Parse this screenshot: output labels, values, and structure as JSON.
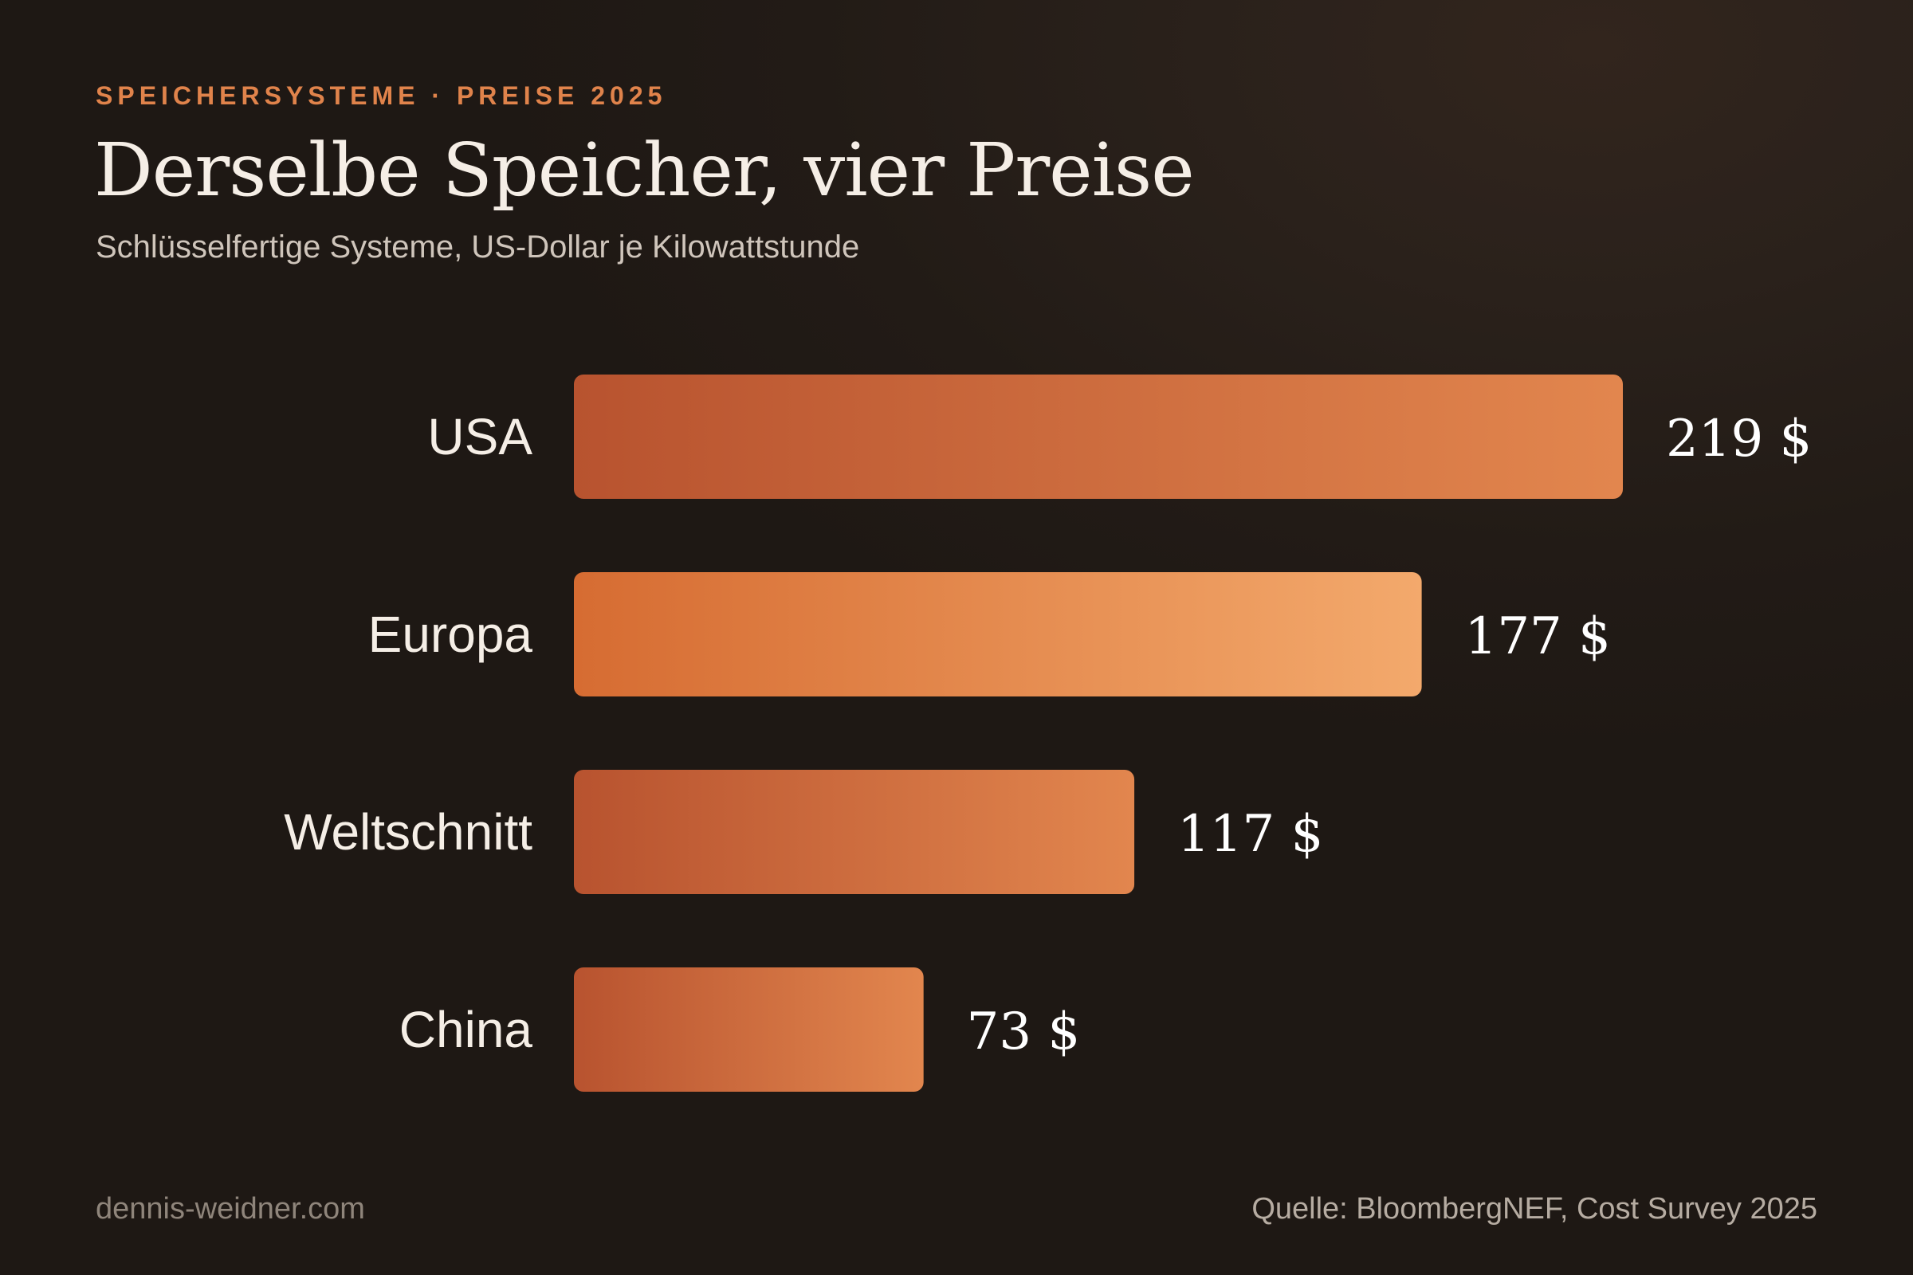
{
  "kicker": "SPEICHERSYSTEME · PREISE 2025",
  "footer": {
    "left": "dennis-weidner.com",
    "right": "Quelle: BloombergNEF, Cost Survey 2025"
  },
  "colors": {
    "bar_start": "#b8532f",
    "bar_end": "#e2864e",
    "highlight_start": "#d66c32",
    "highlight_end": "#f3a96c",
    "accent": "#e0834b"
  },
  "chart_data": {
    "type": "bar",
    "orientation": "horizontal",
    "title": "Derselbe Speicher, vier Preise",
    "subtitle": "Schlüsselfertige Systeme, US-Dollar je Kilowattstunde",
    "categories": [
      "USA",
      "Europa",
      "Weltschnitt",
      "China"
    ],
    "values": [
      219,
      177,
      117,
      73
    ],
    "value_labels": [
      "219 $",
      "177 $",
      "117 $",
      "73 $"
    ],
    "highlight": "Europa",
    "xlabel": "",
    "ylabel": "",
    "xlim": [
      0,
      219
    ],
    "grid": false
  }
}
